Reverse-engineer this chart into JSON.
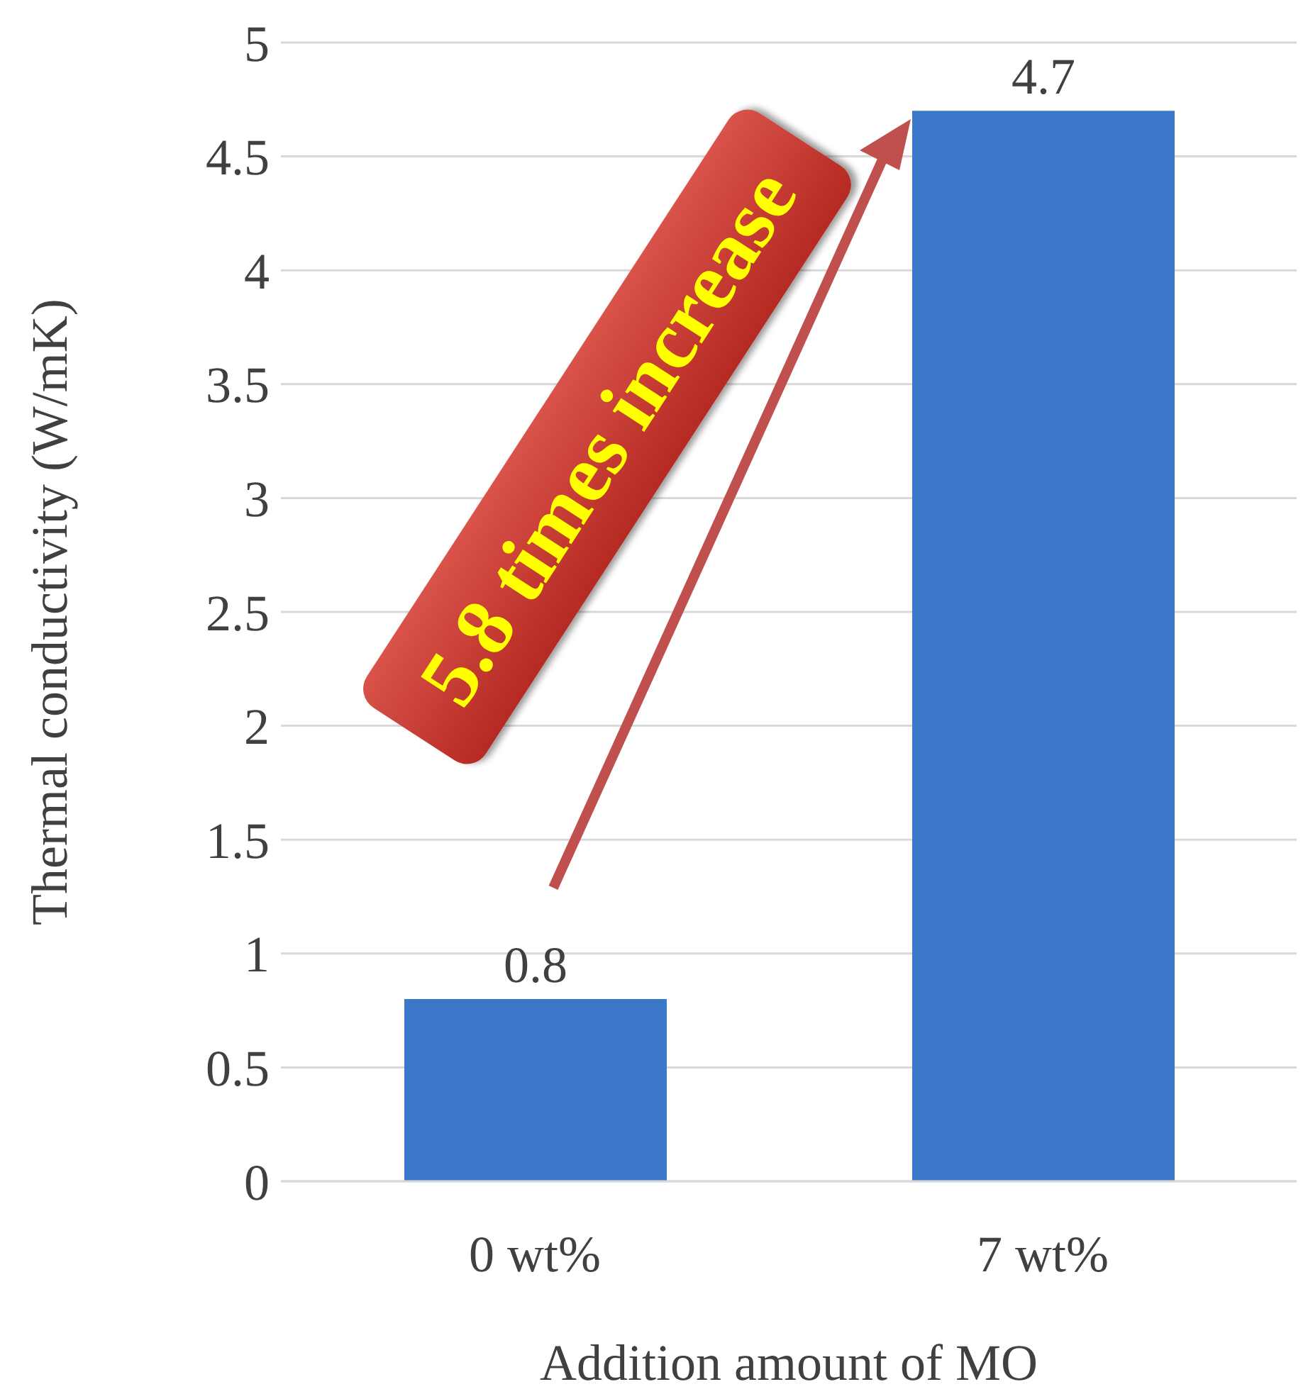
{
  "chart_data": {
    "type": "bar",
    "xlabel": "Addition amount of MO",
    "ylabel": "Thermal conductivity (W/mK)",
    "categories": [
      "0 wt%",
      "7 wt%"
    ],
    "values": [
      0.8,
      4.7
    ],
    "color": "#3b78c9",
    "ylim": [
      0,
      5
    ],
    "yticks": [
      0,
      0.5,
      1,
      1.5,
      2,
      2.5,
      3,
      3.5,
      4,
      4.5,
      5
    ],
    "grid": "y",
    "data_labels": true,
    "annotations": [
      "5.8 times increase"
    ]
  }
}
